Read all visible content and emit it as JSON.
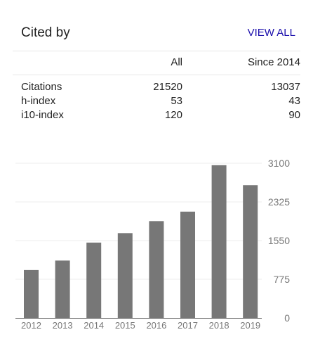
{
  "header": {
    "title": "Cited by",
    "view_all": "VIEW ALL"
  },
  "table": {
    "columns": [
      "All",
      "Since 2014"
    ],
    "rows": [
      {
        "label": "Citations",
        "all": "21520",
        "since": "13037"
      },
      {
        "label": "h-index",
        "all": "53",
        "since": "43"
      },
      {
        "label": "i10-index",
        "all": "120",
        "since": "90"
      }
    ]
  },
  "chart_data": {
    "type": "bar",
    "categories": [
      "2012",
      "2013",
      "2014",
      "2015",
      "2016",
      "2017",
      "2018",
      "2019"
    ],
    "values": [
      960,
      1150,
      1510,
      1700,
      1940,
      2130,
      3060,
      2660
    ],
    "yticks": [
      0,
      775,
      1550,
      2325,
      3100
    ],
    "ylim": [
      0,
      3100
    ],
    "bar_color": "#777777",
    "grid": true
  }
}
